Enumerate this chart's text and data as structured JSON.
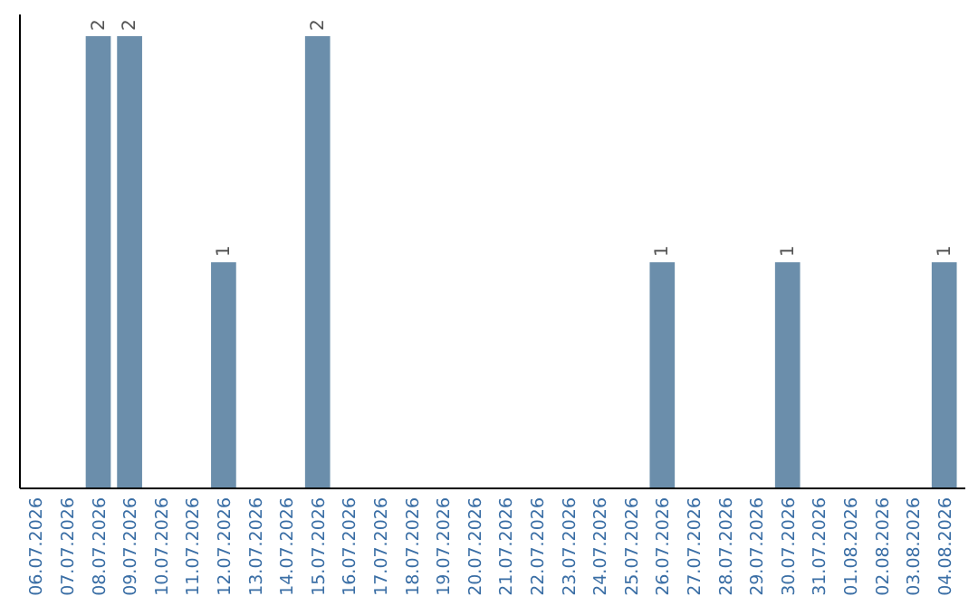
{
  "chart_data": {
    "type": "bar",
    "categories": [
      "06.07.2026",
      "07.07.2026",
      "08.07.2026",
      "09.07.2026",
      "10.07.2026",
      "11.07.2026",
      "12.07.2026",
      "13.07.2026",
      "14.07.2026",
      "15.07.2026",
      "16.07.2026",
      "17.07.2026",
      "18.07.2026",
      "19.07.2026",
      "20.07.2026",
      "21.07.2026",
      "22.07.2026",
      "23.07.2026",
      "24.07.2026",
      "25.07.2026",
      "26.07.2026",
      "27.07.2026",
      "28.07.2026",
      "29.07.2026",
      "30.07.2026",
      "31.07.2026",
      "01.08.2026",
      "02.08.2026",
      "03.08.2026",
      "04.08.2026"
    ],
    "values": [
      0,
      0,
      2,
      2,
      0,
      0,
      1,
      0,
      0,
      2,
      0,
      0,
      0,
      0,
      0,
      0,
      0,
      0,
      0,
      0,
      1,
      0,
      0,
      0,
      1,
      0,
      0,
      0,
      0,
      1
    ],
    "value_labels": [
      null,
      null,
      "2",
      "2",
      null,
      null,
      "1",
      null,
      null,
      "2",
      null,
      null,
      null,
      null,
      null,
      null,
      null,
      null,
      null,
      null,
      "1",
      null,
      null,
      null,
      "1",
      null,
      null,
      null,
      null,
      "1"
    ],
    "color": "#6b8eab",
    "ylim": [
      0,
      2
    ],
    "tick_labels": "x"
  }
}
